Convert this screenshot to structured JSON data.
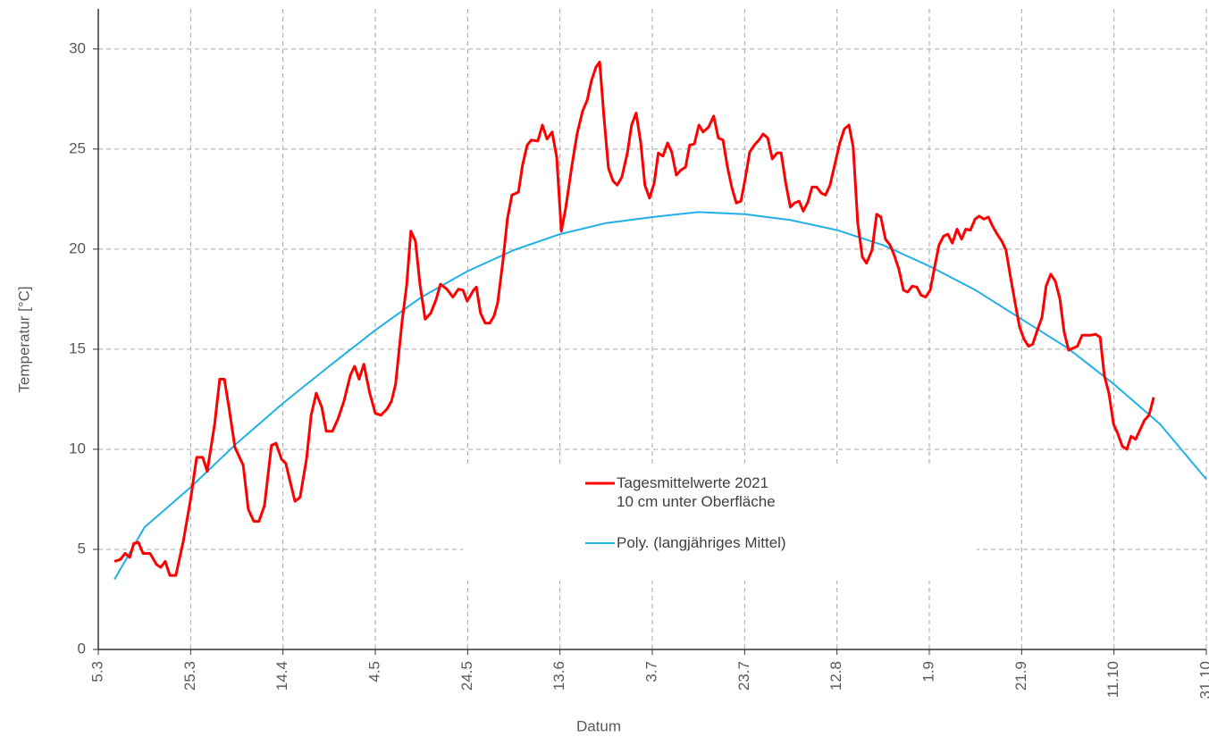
{
  "chart_data": {
    "type": "line",
    "x_label": "Datum",
    "y_label": "Temperatur [°C]",
    "xlim": [
      0,
      240
    ],
    "xticks": [
      {
        "value": 0,
        "label": "5.3"
      },
      {
        "value": 20,
        "label": "25.3"
      },
      {
        "value": 40,
        "label": "14.4"
      },
      {
        "value": 60,
        "label": "4.5"
      },
      {
        "value": 80,
        "label": "24.5"
      },
      {
        "value": 100,
        "label": "13.6"
      },
      {
        "value": 120,
        "label": "3.7"
      },
      {
        "value": 140,
        "label": "23.7"
      },
      {
        "value": 160,
        "label": "12.8"
      },
      {
        "value": 180,
        "label": "1.9"
      },
      {
        "value": 200,
        "label": "21.9"
      },
      {
        "value": 220,
        "label": "11.10"
      },
      {
        "value": 240,
        "label": "31.10"
      }
    ],
    "ylim": [
      0,
      32
    ],
    "yticks": [
      0,
      5,
      10,
      15,
      20,
      25,
      30
    ],
    "grid": true,
    "series": [
      {
        "name": "Tagesmittelwerte 2021\n10 cm unter Oberfläche",
        "color": "#ff0000",
        "x": [
          3.5,
          4.8,
          5.8,
          6.8,
          7.7,
          8.7,
          9.7,
          11.2,
          12.6,
          13.5,
          14.5,
          15.5,
          16.8,
          18.4,
          20,
          21.3,
          22.6,
          23.6,
          25.2,
          26.3,
          27.3,
          28.3,
          29.6,
          31.4,
          32.5,
          33.7,
          34.8,
          36,
          37.5,
          38.5,
          39.7,
          40.6,
          41.6,
          42.6,
          43.7,
          45.1,
          46.1,
          47.2,
          48.4,
          49.4,
          50.7,
          51.9,
          53.2,
          54.6,
          55.5,
          56.5,
          57.5,
          58.8,
          60,
          61.2,
          62.5,
          63.5,
          64.4,
          65.8,
          66.8,
          67.7,
          68.7,
          69.7,
          70.8,
          72,
          73.2,
          74.1,
          75.5,
          76.8,
          78,
          79,
          79.9,
          81.3,
          81.9,
          82.8,
          83.8,
          84.8,
          85.7,
          86.5,
          87.7,
          88.6,
          89.6,
          91,
          91.9,
          92.9,
          93.8,
          95.2,
          96.2,
          97.2,
          98.3,
          99.3,
          100.3,
          101.2,
          102.6,
          103.7,
          104.9,
          105.9,
          106.8,
          107.8,
          108.6,
          109.5,
          110.5,
          111.5,
          112.4,
          113.4,
          114.6,
          115.5,
          116.5,
          117.5,
          118.4,
          119.4,
          120.4,
          121.3,
          122.3,
          123.3,
          124.2,
          125.2,
          126.2,
          127.2,
          128.1,
          129.1,
          130.1,
          131,
          132.2,
          133.3,
          134.3,
          135.3,
          136.2,
          137.2,
          138.2,
          139.2,
          140.1,
          141.1,
          142.1,
          143.1,
          144,
          145,
          146,
          147,
          147.9,
          148.9,
          149.9,
          150.8,
          151.8,
          152.7,
          153.7,
          154.6,
          155.6,
          156.6,
          157.5,
          158.5,
          159.7,
          160.6,
          161.6,
          162.6,
          163.5,
          164.5,
          165.5,
          166.4,
          167.6,
          168.6,
          169.5,
          170.5,
          171.5,
          172.4,
          173.4,
          174.4,
          175.3,
          176.3,
          177.3,
          178.2,
          179.2,
          180.2,
          181.1,
          182.1,
          183.1,
          184,
          185,
          186,
          187,
          187.9,
          188.9,
          189.9,
          190.8,
          191.8,
          192.8,
          193.7,
          194.7,
          195.7,
          196.6,
          197.6,
          198.6,
          199.5,
          200.5,
          201.5,
          202.4,
          203.4,
          204.4,
          205.3,
          206.3,
          207.3,
          208.3,
          209.2,
          210.2,
          211.1,
          212.1,
          213.1,
          214.1,
          215,
          216,
          217,
          217.9,
          218.9,
          219.9,
          220.8,
          221.8,
          222.8,
          223.7,
          224.7,
          225.7,
          226.6,
          227.6,
          228.6
        ],
        "values": [
          4.4,
          4.5,
          4.8,
          4.6,
          5.3,
          5.35,
          4.8,
          4.8,
          4.25,
          4.1,
          4.4,
          3.7,
          3.7,
          5.4,
          7.5,
          9.6,
          9.6,
          8.9,
          11.25,
          13.5,
          13.5,
          12.1,
          10.1,
          9.2,
          7.0,
          6.4,
          6.4,
          7.2,
          10.2,
          10.3,
          9.5,
          9.3,
          8.35,
          7.4,
          7.6,
          9.5,
          11.7,
          12.8,
          12.1,
          10.9,
          10.9,
          11.5,
          12.4,
          13.7,
          14.15,
          13.5,
          14.25,
          12.8,
          11.8,
          11.7,
          12.0,
          12.4,
          13.25,
          16.4,
          18.2,
          20.9,
          20.4,
          18.2,
          16.5,
          16.8,
          17.5,
          18.25,
          18.0,
          17.6,
          18.0,
          17.95,
          17.4,
          17.95,
          18.1,
          16.8,
          16.3,
          16.3,
          16.65,
          17.3,
          19.5,
          21.5,
          22.7,
          22.85,
          24.2,
          25.2,
          25.45,
          25.4,
          26.2,
          25.5,
          25.85,
          24.6,
          20.9,
          22.0,
          24.2,
          25.75,
          26.9,
          27.45,
          28.4,
          29.1,
          29.35,
          26.65,
          24.05,
          23.4,
          23.2,
          23.6,
          24.8,
          26.2,
          26.8,
          25.3,
          23.2,
          22.55,
          23.3,
          24.8,
          24.65,
          25.3,
          24.85,
          23.7,
          23.95,
          24.1,
          25.2,
          25.25,
          26.2,
          25.85,
          26.1,
          26.65,
          25.55,
          25.45,
          24.2,
          23.1,
          22.3,
          22.4,
          23.5,
          24.85,
          25.2,
          25.45,
          25.75,
          25.55,
          24.5,
          24.8,
          24.8,
          23.3,
          22.1,
          22.3,
          22.4,
          21.9,
          22.35,
          23.1,
          23.1,
          22.8,
          22.7,
          23.2,
          24.4,
          25.3,
          26.0,
          26.2,
          25.1,
          21.3,
          19.6,
          19.3,
          19.95,
          21.75,
          21.6,
          20.5,
          20.2,
          19.7,
          19.0,
          17.95,
          17.85,
          18.15,
          18.1,
          17.7,
          17.6,
          17.95,
          19.05,
          20.2,
          20.65,
          20.75,
          20.3,
          21.0,
          20.5,
          21.0,
          20.95,
          21.5,
          21.65,
          21.5,
          21.6,
          21.15,
          20.75,
          20.4,
          19.95,
          18.6,
          17.3,
          16.15,
          15.5,
          15.15,
          15.25,
          15.95,
          16.6,
          18.15,
          18.75,
          18.4,
          17.5,
          15.85,
          14.95,
          15.05,
          15.15,
          15.7,
          15.7,
          15.7,
          15.75,
          15.6,
          13.7,
          12.8,
          11.25,
          10.8,
          10.15,
          10.0,
          10.65,
          10.5,
          11.0,
          11.45,
          11.7,
          12.6
        ]
      },
      {
        "name": "Poly. (langjähriges Mittel)",
        "color": "#1fb0e6",
        "x": [
          3.5,
          10,
          20,
          30,
          40,
          50,
          60,
          70,
          80,
          90,
          100,
          110,
          120,
          130,
          140,
          150,
          160,
          170,
          180,
          190,
          200,
          210,
          220,
          230,
          240
        ],
        "values": [
          3.5,
          6.1,
          8.1,
          10.3,
          12.3,
          14.15,
          15.95,
          17.6,
          18.9,
          19.95,
          20.75,
          21.3,
          21.6,
          21.85,
          21.75,
          21.45,
          20.95,
          20.2,
          19.15,
          17.95,
          16.5,
          15.05,
          13.25,
          11.25,
          8.5
        ]
      }
    ]
  }
}
